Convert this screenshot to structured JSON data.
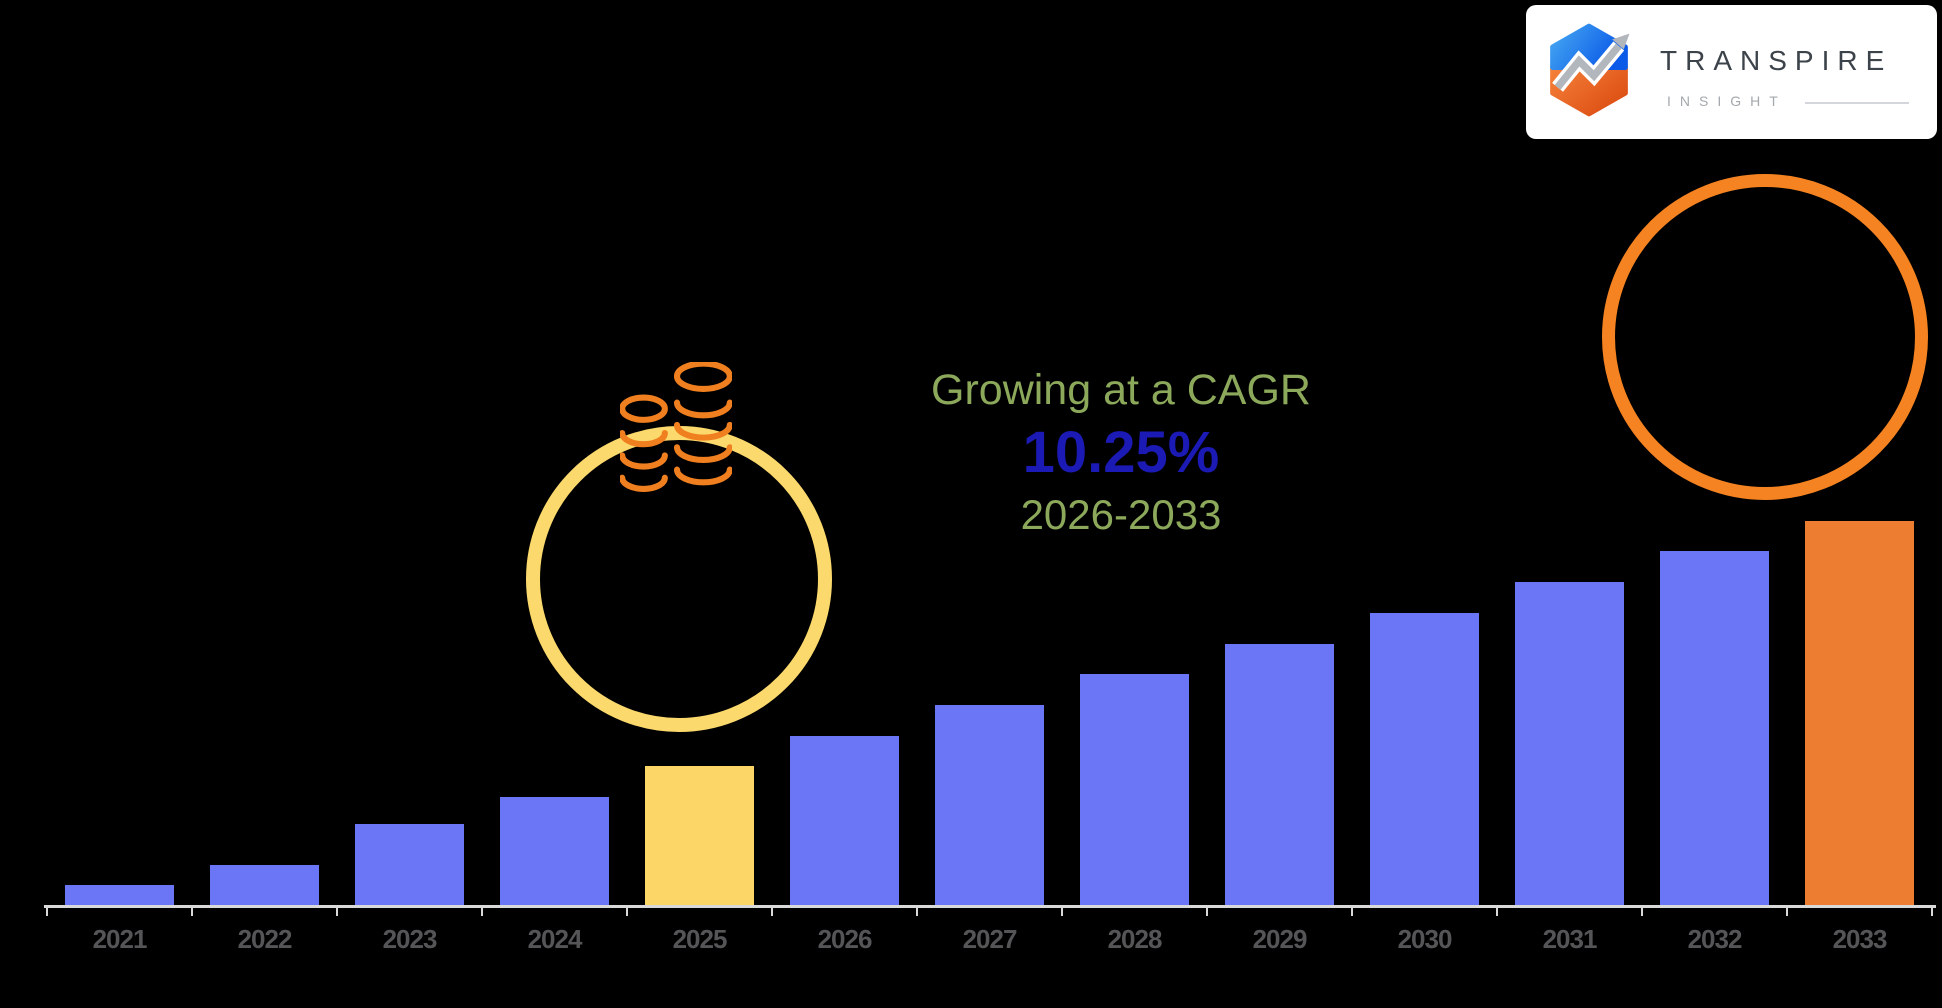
{
  "branding": {
    "logo": {
      "title": "TRANSPIRE",
      "subtitle": "INSIGHT",
      "mark_colors": {
        "blue_light": "#47A9F2",
        "blue_dark": "#0B5BE8",
        "orange_light": "#F5813A",
        "orange_dark": "#DC4D12",
        "arrow_gray": "#B2B6BD"
      },
      "title_color": "#3C434A",
      "subtitle_color": "#A4A9AE"
    }
  },
  "annotation": {
    "line1": "Growing at a CAGR",
    "line2": "10.25%",
    "line3": "2026-2033",
    "green_color": "#8CA85A",
    "blue_color": "#1B1AB4"
  },
  "decorations": {
    "circle_2025_color": "#FBD96C",
    "circle_2033_color": "#F58321",
    "coins_icon_color": "#F07F1F"
  },
  "axis": {
    "line_color": "#D9D9D9",
    "label_color": "#555557"
  },
  "chart_data": {
    "type": "bar",
    "title": "",
    "xlabel": "",
    "ylabel": "",
    "grid": false,
    "legend": false,
    "categories": [
      "2021",
      "2022",
      "2023",
      "2024",
      "2025",
      "2026",
      "2027",
      "2028",
      "2029",
      "2030",
      "2031",
      "2032",
      "2033"
    ],
    "values_relative": [
      5.2,
      10.4,
      21.1,
      28.1,
      36.2,
      44.0,
      52.1,
      60.2,
      68.0,
      76.0,
      84.1,
      92.2,
      100.0
    ],
    "value_note": "No numeric y-axis shown in image; values are relative bar heights with 2033 = 100",
    "ylim": [
      0,
      100
    ],
    "bar_color_roles": [
      "blue",
      "blue",
      "blue",
      "blue",
      "yellow",
      "blue",
      "blue",
      "blue",
      "blue",
      "blue",
      "blue",
      "blue",
      "orange"
    ],
    "colors": {
      "blue": "#6B76F7",
      "yellow": "#FCD768",
      "orange": "#ED7D31"
    }
  }
}
